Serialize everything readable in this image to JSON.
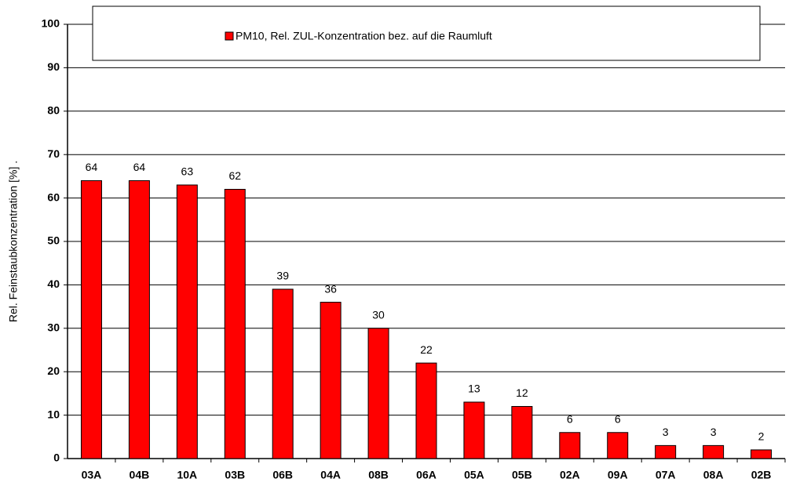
{
  "chart_data": {
    "type": "bar",
    "y_label": "Rel. Feinstaubkonzentration [%] .",
    "categories": [
      "03A",
      "04B",
      "10A",
      "03B",
      "06B",
      "04A",
      "08B",
      "06A",
      "05A",
      "05B",
      "02A",
      "09A",
      "07A",
      "08A",
      "02B"
    ],
    "series": [
      {
        "name": "PM10, Rel. ZUL-Konzentration bez. auf die Raumluft",
        "color": "#ff0000",
        "values": [
          64,
          64,
          63,
          62,
          39,
          36,
          30,
          22,
          13,
          12,
          6,
          6,
          3,
          3,
          2
        ]
      }
    ],
    "ylim": [
      0,
      100
    ],
    "yticks": [
      0,
      10,
      20,
      30,
      40,
      50,
      60,
      70,
      80,
      90,
      100
    ],
    "grid": true,
    "legend": "top",
    "data_labels": true
  }
}
